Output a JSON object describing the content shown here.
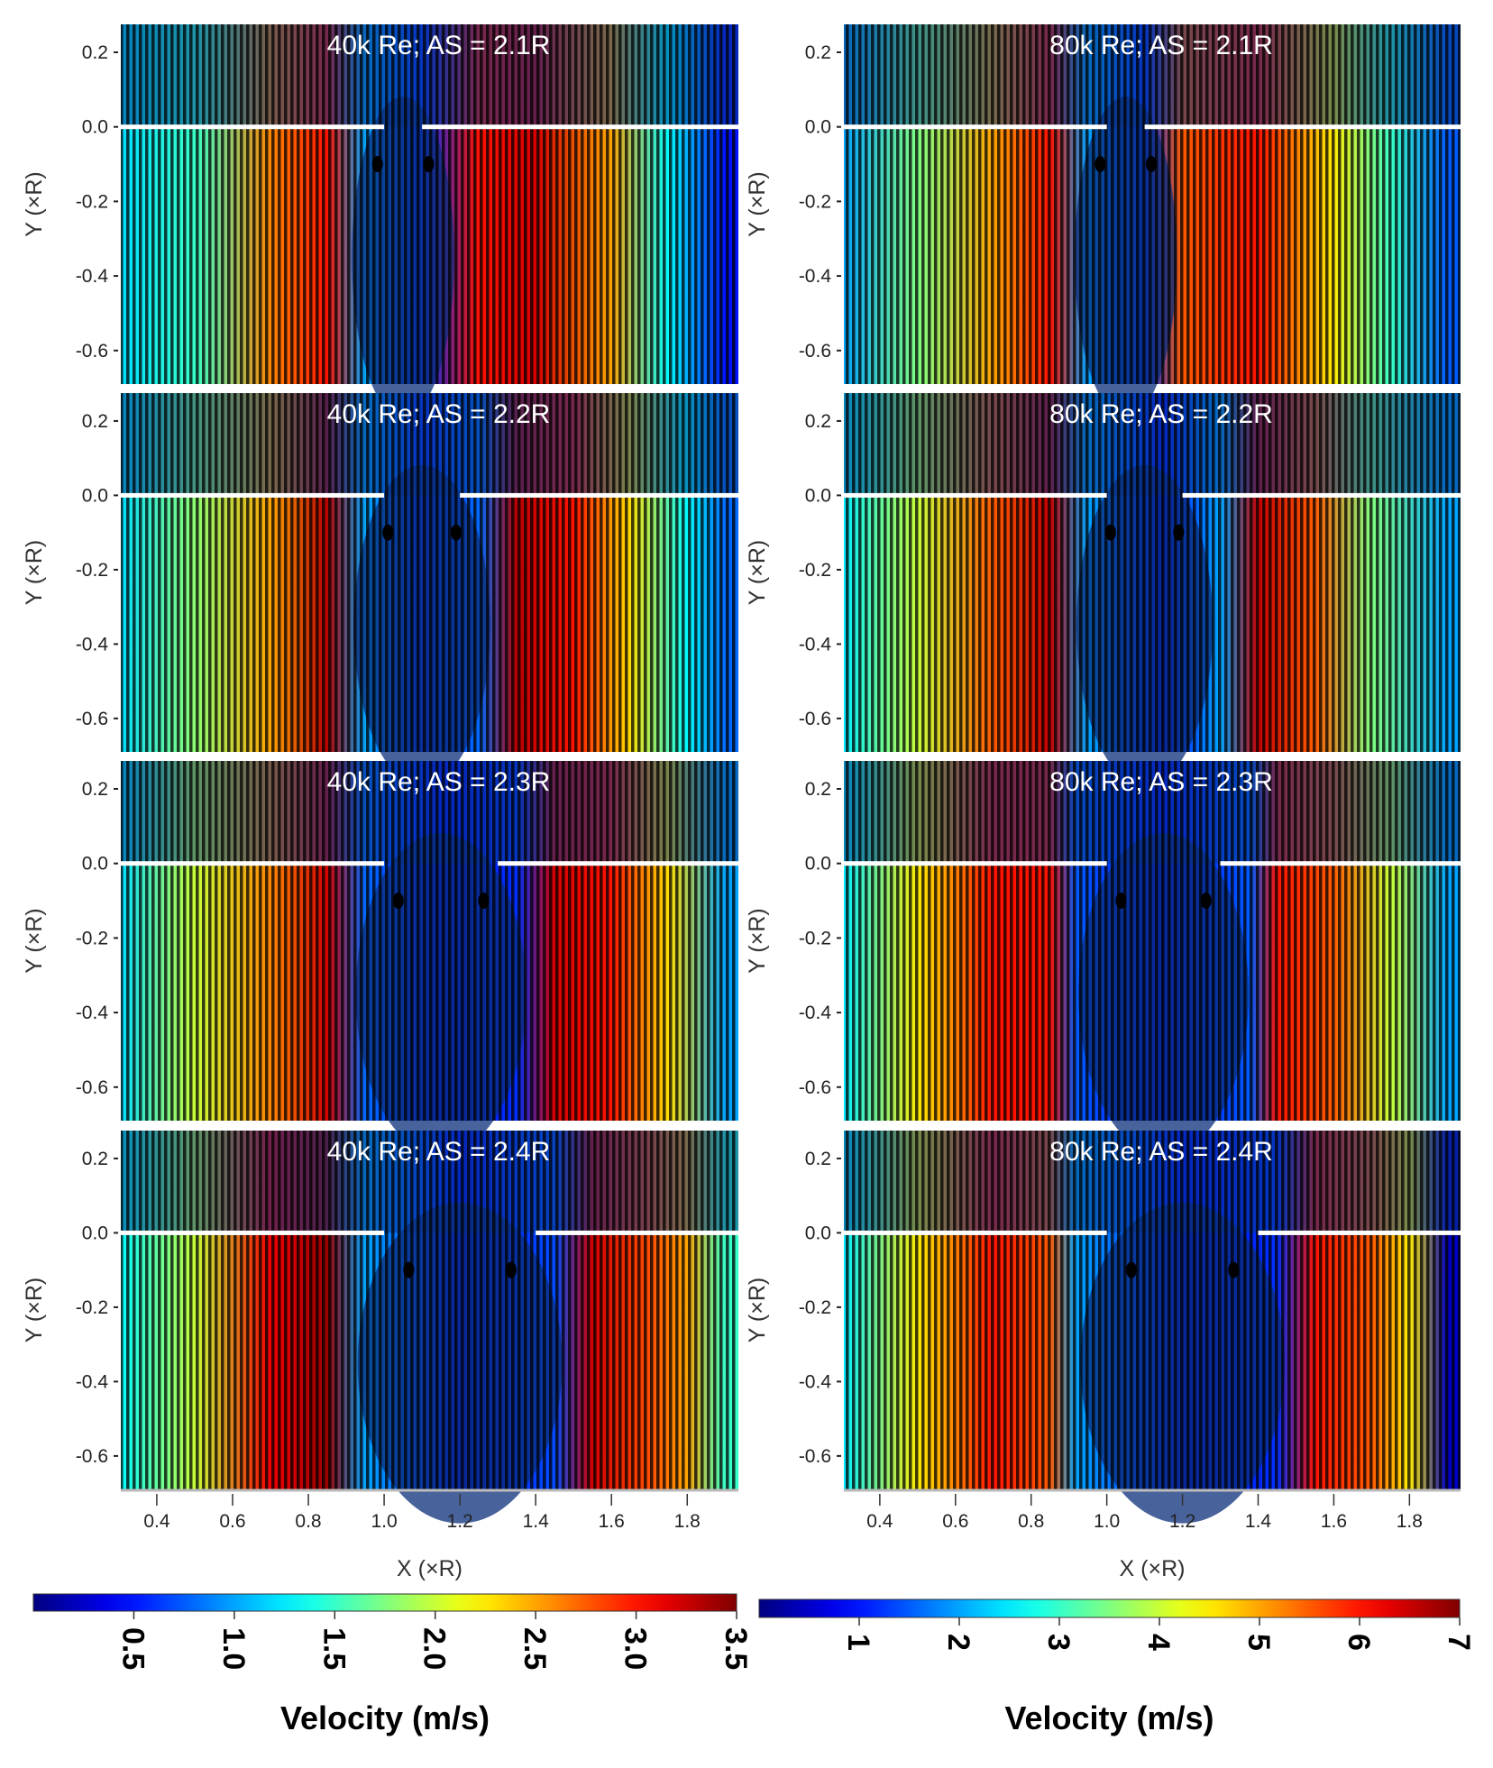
{
  "chart_data": [
    {
      "type": "heatmap",
      "title": "40k Re;  AS = 2.1R",
      "column": "left",
      "xlabel": "X (×R)",
      "ylabel": "Y (×R)",
      "wall_gap_x": [
        1.0,
        1.1
      ],
      "profile_x": [
        0.3,
        0.5,
        0.7,
        0.85,
        0.95,
        1.1,
        1.25,
        1.4,
        1.6,
        1.75,
        1.9
      ],
      "velocity": [
        1.2,
        1.5,
        2.6,
        3.0,
        1.0,
        0.6,
        3.0,
        3.2,
        2.5,
        1.3,
        0.5
      ]
    },
    {
      "type": "heatmap",
      "title": "80k Re;  AS = 2.1R",
      "column": "right",
      "xlabel": "X (×R)",
      "ylabel": "Y (×R)",
      "wall_gap_x": [
        1.0,
        1.1
      ],
      "profile_x": [
        0.3,
        0.5,
        0.7,
        0.85,
        0.95,
        1.1,
        1.2,
        1.4,
        1.6,
        1.75,
        1.9
      ],
      "velocity": [
        2,
        3.5,
        5,
        6,
        2,
        1.2,
        5.5,
        6,
        4.5,
        3,
        1.5
      ]
    },
    {
      "type": "heatmap",
      "title": "40k Re;  AS = 2.2R",
      "column": "left",
      "xlabel": "X (×R)",
      "ylabel": "Y (×R)",
      "wall_gap_x": [
        1.0,
        1.2
      ],
      "profile_x": [
        0.3,
        0.5,
        0.7,
        0.85,
        0.95,
        1.1,
        1.25,
        1.35,
        1.5,
        1.65,
        1.8,
        1.9
      ],
      "velocity": [
        1.2,
        1.8,
        2.5,
        3.3,
        1.0,
        0.6,
        0.8,
        3.3,
        3.0,
        2.3,
        1.3,
        0.8
      ]
    },
    {
      "type": "heatmap",
      "title": "80k Re;  AS = 2.2R",
      "column": "right",
      "xlabel": "X (×R)",
      "ylabel": "Y (×R)",
      "wall_gap_x": [
        1.0,
        1.2
      ],
      "profile_x": [
        0.3,
        0.5,
        0.7,
        0.85,
        0.95,
        1.15,
        1.3,
        1.4,
        1.55,
        1.7,
        1.9
      ],
      "velocity": [
        2.5,
        4,
        5.5,
        6.5,
        2,
        1,
        2,
        6.5,
        5.5,
        3.5,
        2
      ]
    },
    {
      "type": "heatmap",
      "title": "40k Re;  AS = 2.3R",
      "column": "left",
      "xlabel": "X (×R)",
      "ylabel": "Y (×R)",
      "wall_gap_x": [
        1.0,
        1.3
      ],
      "profile_x": [
        0.3,
        0.5,
        0.7,
        0.85,
        0.95,
        1.15,
        1.35,
        1.45,
        1.6,
        1.75,
        1.9
      ],
      "velocity": [
        1.2,
        2.0,
        2.6,
        3.2,
        0.8,
        0.5,
        0.6,
        3.2,
        3.0,
        2.3,
        1.0
      ]
    },
    {
      "type": "heatmap",
      "title": "80k Re;  AS = 2.3R",
      "column": "right",
      "xlabel": "X (×R)",
      "ylabel": "Y (×R)",
      "wall_gap_x": [
        1.0,
        1.3
      ],
      "profile_x": [
        0.3,
        0.5,
        0.7,
        0.85,
        0.92,
        1.15,
        1.38,
        1.45,
        1.6,
        1.75,
        1.9
      ],
      "velocity": [
        2.5,
        4.5,
        6,
        6,
        1.5,
        1,
        1.5,
        6,
        5.5,
        4,
        2
      ]
    },
    {
      "type": "heatmap",
      "title": "40k Re;  AS = 2.4R",
      "column": "left",
      "xlabel": "X (×R)",
      "ylabel": "Y (×R)",
      "wall_gap_x": [
        1.0,
        1.4
      ],
      "profile_x": [
        0.3,
        0.5,
        0.7,
        0.85,
        0.95,
        1.2,
        1.45,
        1.55,
        1.7,
        1.8,
        1.9
      ],
      "velocity": [
        1.3,
        2.0,
        3.1,
        3.4,
        1.0,
        0.5,
        0.7,
        3.2,
        2.8,
        2.5,
        1.5
      ]
    },
    {
      "type": "heatmap",
      "title": "80k Re;  AS = 2.4R",
      "column": "right",
      "xlabel": "X (×R)",
      "ylabel": "Y (×R)",
      "wall_gap_x": [
        1.0,
        1.4
      ],
      "profile_x": [
        0.3,
        0.5,
        0.7,
        0.85,
        0.92,
        1.2,
        1.45,
        1.55,
        1.7,
        1.8,
        1.9
      ],
      "velocity": [
        2.5,
        4.5,
        6,
        5.5,
        2,
        1,
        1.2,
        6,
        5.5,
        4.5,
        0.5
      ]
    }
  ],
  "axes": {
    "xlim": [
      0.305,
      1.935
    ],
    "ylim": [
      -0.69,
      0.275
    ],
    "x_ticks": [
      "0.4",
      "0.6",
      "0.8",
      "1.0",
      "1.2",
      "1.4",
      "1.6",
      "1.8"
    ],
    "y_ticks": [
      "0.2",
      "0.0",
      "-0.2",
      "-0.4",
      "-0.6"
    ],
    "xlabel": "X (×R)",
    "ylabel": "Y (×R)"
  },
  "colorbars": [
    {
      "label": "Velocity (m/s)",
      "range": [
        0,
        3.5
      ],
      "ticks": [
        "0.5",
        "1.0",
        "1.5",
        "2.0",
        "2.5",
        "3.0",
        "3.5"
      ],
      "colormap": "jet"
    },
    {
      "label": "Velocity (m/s)",
      "range": [
        0,
        7
      ],
      "ticks": [
        "1",
        "2",
        "3",
        "4",
        "5",
        "6",
        "7"
      ],
      "colormap": "jet"
    }
  ],
  "colors": {
    "wall": "#ffffff",
    "background": "#000000"
  }
}
